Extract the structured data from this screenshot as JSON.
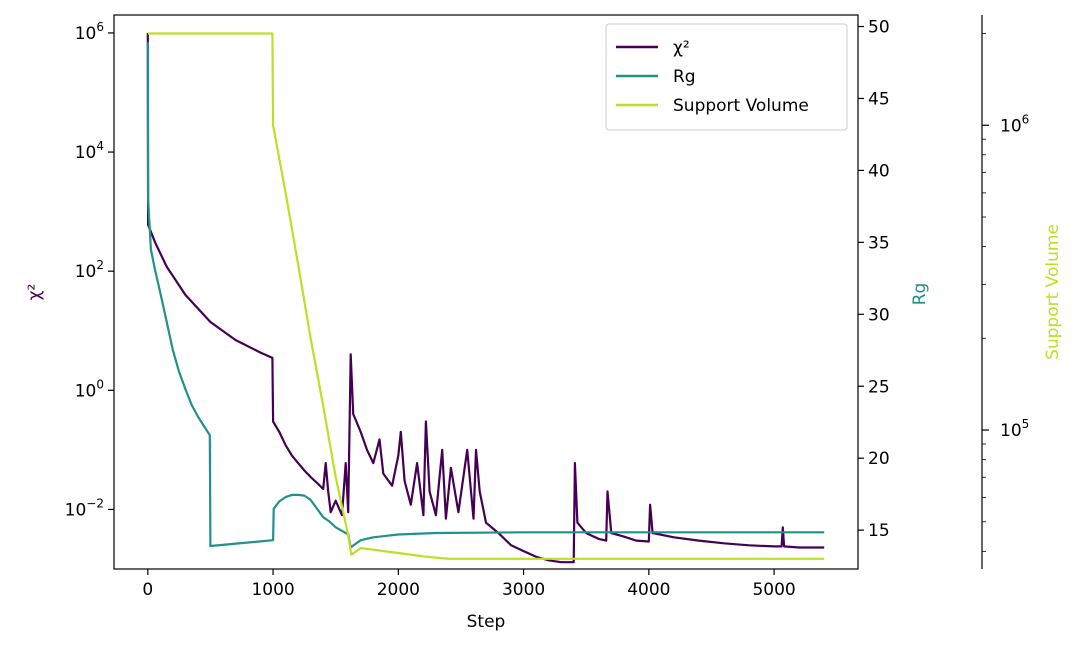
{
  "chart_data": {
    "type": "line",
    "xlabel": "Step",
    "xlim": [
      -270,
      5670
    ],
    "x_ticks": [
      0,
      1000,
      2000,
      3000,
      4000,
      5000
    ],
    "axes": {
      "chi2": {
        "label": "χ²",
        "scale": "log",
        "ylim": [
          0.001,
          2000000
        ],
        "ticks": [
          {
            "value": 1000000,
            "exp": "6"
          },
          {
            "value": 10000,
            "exp": "4"
          },
          {
            "value": 100,
            "exp": "2"
          },
          {
            "value": 1,
            "exp": "0"
          },
          {
            "value": 0.01,
            "exp": "−2"
          }
        ]
      },
      "rg": {
        "label": "Rg",
        "scale": "linear",
        "ylim": [
          12.3,
          50.8
        ],
        "ticks": [
          15,
          20,
          25,
          30,
          35,
          40,
          45,
          50
        ]
      },
      "support": {
        "label": "Support Volume",
        "scale": "log",
        "ylim": [
          35000,
          2300000
        ],
        "ticks": [
          {
            "value": 1000000,
            "exp": "6"
          },
          {
            "value": 100000,
            "exp": "5"
          }
        ]
      }
    },
    "series": [
      {
        "name": "χ²",
        "axis": "chi2",
        "color": "#440154",
        "points": [
          [
            0,
            1000000
          ],
          [
            2,
            600
          ],
          [
            60,
            300
          ],
          [
            150,
            120
          ],
          [
            300,
            40
          ],
          [
            500,
            14
          ],
          [
            700,
            7
          ],
          [
            900,
            4.3
          ],
          [
            995,
            3.5
          ],
          [
            1000,
            0.3
          ],
          [
            1050,
            0.2
          ],
          [
            1100,
            0.12
          ],
          [
            1150,
            0.08
          ],
          [
            1200,
            0.06
          ],
          [
            1250,
            0.045
          ],
          [
            1300,
            0.035
          ],
          [
            1350,
            0.028
          ],
          [
            1400,
            0.022
          ],
          [
            1420,
            0.06
          ],
          [
            1440,
            0.02
          ],
          [
            1460,
            0.009
          ],
          [
            1500,
            0.014
          ],
          [
            1550,
            0.008
          ],
          [
            1580,
            0.06
          ],
          [
            1600,
            0.009
          ],
          [
            1620,
            4
          ],
          [
            1640,
            0.4
          ],
          [
            1700,
            0.2
          ],
          [
            1750,
            0.1
          ],
          [
            1800,
            0.06
          ],
          [
            1850,
            0.15
          ],
          [
            1880,
            0.04
          ],
          [
            1950,
            0.025
          ],
          [
            2000,
            0.08
          ],
          [
            2020,
            0.2
          ],
          [
            2050,
            0.03
          ],
          [
            2100,
            0.012
          ],
          [
            2150,
            0.06
          ],
          [
            2200,
            0.008
          ],
          [
            2220,
            0.3
          ],
          [
            2250,
            0.02
          ],
          [
            2300,
            0.008
          ],
          [
            2350,
            0.1
          ],
          [
            2380,
            0.007
          ],
          [
            2420,
            0.05
          ],
          [
            2480,
            0.009
          ],
          [
            2550,
            0.1
          ],
          [
            2600,
            0.007
          ],
          [
            2620,
            0.1
          ],
          [
            2650,
            0.02
          ],
          [
            2700,
            0.006
          ],
          [
            2800,
            0.004
          ],
          [
            2900,
            0.0025
          ],
          [
            3000,
            0.002
          ],
          [
            3100,
            0.0016
          ],
          [
            3200,
            0.0014
          ],
          [
            3300,
            0.0013
          ],
          [
            3400,
            0.0013
          ],
          [
            3410,
            0.06
          ],
          [
            3430,
            0.006
          ],
          [
            3500,
            0.004
          ],
          [
            3600,
            0.0032
          ],
          [
            3660,
            0.003
          ],
          [
            3670,
            0.02
          ],
          [
            3700,
            0.004
          ],
          [
            3800,
            0.0035
          ],
          [
            3900,
            0.003
          ],
          [
            4000,
            0.0029
          ],
          [
            4010,
            0.012
          ],
          [
            4030,
            0.004
          ],
          [
            4200,
            0.0034
          ],
          [
            4400,
            0.003
          ],
          [
            4600,
            0.0027
          ],
          [
            4800,
            0.0025
          ],
          [
            5000,
            0.0024
          ],
          [
            5060,
            0.0024
          ],
          [
            5070,
            0.005
          ],
          [
            5080,
            0.0024
          ],
          [
            5200,
            0.0023
          ],
          [
            5400,
            0.0023
          ]
        ]
      },
      {
        "name": "Rg",
        "axis": "rg",
        "color": "#21918c",
        "points": [
          [
            0,
            48.9
          ],
          [
            2,
            38
          ],
          [
            25,
            34.5
          ],
          [
            60,
            33
          ],
          [
            100,
            31.5
          ],
          [
            150,
            29.5
          ],
          [
            200,
            27.5
          ],
          [
            250,
            26
          ],
          [
            300,
            24.8
          ],
          [
            350,
            23.7
          ],
          [
            400,
            22.9
          ],
          [
            450,
            22.2
          ],
          [
            495,
            21.6
          ],
          [
            500,
            13.9
          ],
          [
            1000,
            14.3
          ],
          [
            1005,
            16.5
          ],
          [
            1050,
            17
          ],
          [
            1100,
            17.3
          ],
          [
            1150,
            17.45
          ],
          [
            1200,
            17.45
          ],
          [
            1250,
            17.4
          ],
          [
            1300,
            17.1
          ],
          [
            1350,
            16.5
          ],
          [
            1400,
            15.9
          ],
          [
            1450,
            15.6
          ],
          [
            1500,
            15.2
          ],
          [
            1600,
            14.7
          ],
          [
            1620,
            13.8
          ],
          [
            1700,
            14.3
          ],
          [
            1800,
            14.5
          ],
          [
            2000,
            14.7
          ],
          [
            2300,
            14.8
          ],
          [
            3000,
            14.85
          ],
          [
            4000,
            14.85
          ],
          [
            5400,
            14.85
          ]
        ]
      },
      {
        "name": "Support Volume",
        "axis": "support",
        "color": "#bddf26",
        "points": [
          [
            0,
            2000000
          ],
          [
            995,
            2000000
          ],
          [
            1000,
            1000000
          ],
          [
            1100,
            600000
          ],
          [
            1200,
            350000
          ],
          [
            1300,
            200000
          ],
          [
            1400,
            120000
          ],
          [
            1500,
            70000
          ],
          [
            1600,
            45000
          ],
          [
            1625,
            39000
          ],
          [
            1700,
            41000
          ],
          [
            1800,
            40500
          ],
          [
            2000,
            39500
          ],
          [
            2200,
            38500
          ],
          [
            2400,
            37800
          ],
          [
            2600,
            37800
          ],
          [
            3000,
            37800
          ],
          [
            5400,
            37800
          ]
        ]
      }
    ],
    "legend": {
      "placement": "upper-right",
      "items": [
        "χ²",
        "Rg",
        "Support Volume"
      ]
    },
    "grid": false
  }
}
